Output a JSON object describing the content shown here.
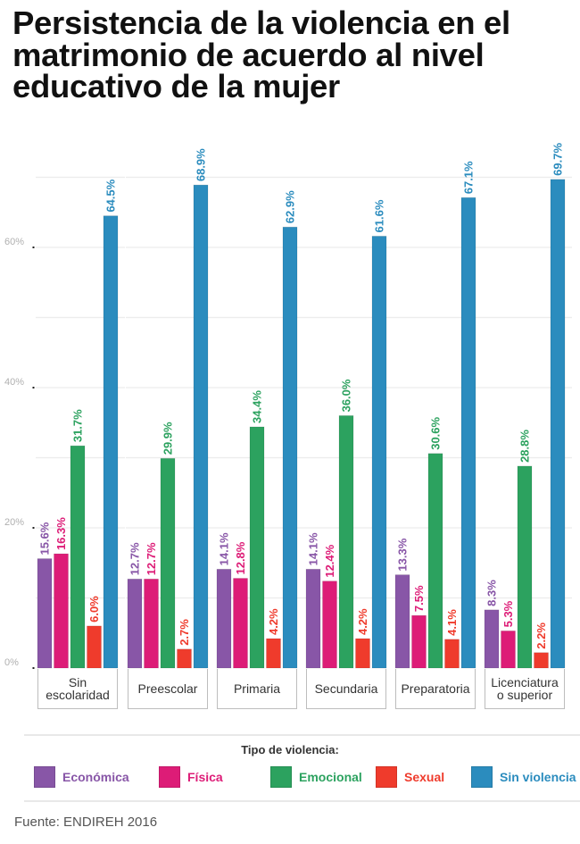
{
  "title": "Persistencia de la violencia en el matrimonio de acuerdo al nivel educativo de la mujer",
  "chart_data": {
    "type": "bar",
    "title": "Persistencia de la violencia en el matrimonio de acuerdo al nivel educativo de la mujer",
    "xlabel": "",
    "ylabel": "",
    "categories": [
      "Sin escolaridad",
      "Preescolar",
      "Primaria",
      "Secundaria",
      "Preparatoria",
      "Licenciatura o superior"
    ],
    "category_lines": [
      [
        "Sin",
        "escolaridad"
      ],
      [
        "Preescolar"
      ],
      [
        "Primaria"
      ],
      [
        "Secundaria"
      ],
      [
        "Preparatoria"
      ],
      [
        "Licenciatura",
        "o superior"
      ]
    ],
    "series": [
      {
        "name": "Económica",
        "color": "#8856a7",
        "values": [
          15.6,
          12.7,
          14.1,
          14.1,
          13.3,
          8.3
        ]
      },
      {
        "name": "Física",
        "color": "#dd1c77",
        "values": [
          16.3,
          12.7,
          12.8,
          12.4,
          7.5,
          5.3
        ]
      },
      {
        "name": "Emocional",
        "color": "#2ca25f",
        "values": [
          31.7,
          29.9,
          34.4,
          36.0,
          30.6,
          28.8
        ]
      },
      {
        "name": "Sexual",
        "color": "#ef3b2c",
        "values": [
          6.0,
          2.7,
          4.2,
          4.2,
          4.1,
          2.2
        ]
      },
      {
        "name": "Sin violencia",
        "color": "#2b8cbe",
        "values": [
          64.5,
          68.9,
          62.9,
          61.6,
          67.1,
          69.7
        ]
      }
    ],
    "value_labels": [
      [
        "15.6%",
        "12.7%",
        "14.1%",
        "14.1%",
        "13.3%",
        "8.3%"
      ],
      [
        "16.3%",
        "12.7%",
        "12.8%",
        "12.4%",
        "7.5%",
        "5.3%"
      ],
      [
        "31.7%",
        "29.9%",
        "34.4%",
        "36.0%",
        "30.6%",
        "28.8%"
      ],
      [
        "6.0%",
        "2.7%",
        "4.2%",
        "4.2%",
        "4.1%",
        "2.2%"
      ],
      [
        "64.5%",
        "68.9%",
        "62.9%",
        "61.6%",
        "67.1%",
        "69.7%"
      ]
    ],
    "y_ticks": [
      0,
      20,
      40,
      60
    ],
    "y_tick_labels": [
      "0%",
      "20%",
      "40%",
      "60%"
    ],
    "y_gridlines": [
      10,
      20,
      30,
      40,
      50,
      60,
      70
    ],
    "ylim": [
      0,
      72
    ],
    "grid": true,
    "faceted": true,
    "legend": {
      "title": "Tipo de violencia:",
      "position": "bottom",
      "entries": [
        "Económica",
        "Física",
        "Emocional",
        "Sexual",
        "Sin violencia"
      ]
    }
  },
  "legend": {
    "title": "Tipo de violencia:",
    "items": [
      {
        "label": "Económica",
        "color": "#8856a7"
      },
      {
        "label": "Física",
        "color": "#dd1c77"
      },
      {
        "label": "Emocional",
        "color": "#2ca25f"
      },
      {
        "label": "Sexual",
        "color": "#ef3b2c"
      },
      {
        "label": "Sin violencia",
        "color": "#2b8cbe"
      }
    ]
  },
  "source": "Fuente: ENDIREH 2016"
}
